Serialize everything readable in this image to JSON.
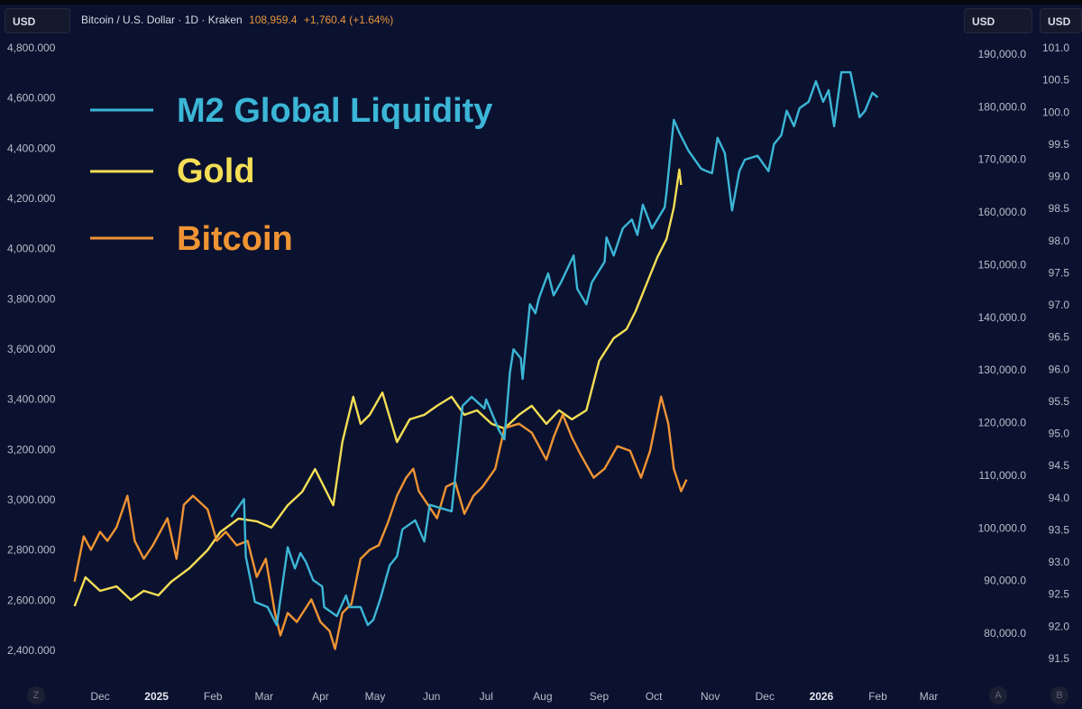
{
  "header": {
    "currency_left": "USD",
    "symbol_title": "Bitcoin / U.S. Dollar · 1D · Kraken",
    "price": "108,959.4",
    "change": "+1,760.4 (+1.64%)",
    "currency_right_a": "USD",
    "currency_right_b": "USD"
  },
  "bottom_buttons": {
    "z": "Z",
    "a": "A",
    "b": "B"
  },
  "colors": {
    "background": "#0b1230",
    "m2": "#3cb6d6",
    "gold": "#f4de55",
    "bitcoin": "#ef9433"
  },
  "chart_data": {
    "type": "line",
    "legend": [
      {
        "name": "M2 Global Liquidity",
        "color": "#3cb6d6"
      },
      {
        "name": "Gold",
        "color": "#f4de55"
      },
      {
        "name": "Bitcoin",
        "color": "#ef9433"
      }
    ],
    "legend_placement": "top-left",
    "grid": false,
    "x_ticks": [
      {
        "label": "Dec",
        "date": "2024-12-01",
        "bold": false
      },
      {
        "label": "2025",
        "date": "2025-01-01",
        "bold": true
      },
      {
        "label": "Feb",
        "date": "2025-02-01",
        "bold": false
      },
      {
        "label": "Mar",
        "date": "2025-03-01",
        "bold": false
      },
      {
        "label": "Apr",
        "date": "2025-04-01",
        "bold": false
      },
      {
        "label": "May",
        "date": "2025-05-01",
        "bold": false
      },
      {
        "label": "Jun",
        "date": "2025-06-01",
        "bold": false
      },
      {
        "label": "Jul",
        "date": "2025-07-01",
        "bold": false
      },
      {
        "label": "Aug",
        "date": "2025-08-01",
        "bold": false
      },
      {
        "label": "Sep",
        "date": "2025-09-01",
        "bold": false
      },
      {
        "label": "Oct",
        "date": "2025-10-01",
        "bold": false
      },
      {
        "label": "Nov",
        "date": "2025-11-01",
        "bold": false
      },
      {
        "label": "Dec",
        "date": "2025-12-01",
        "bold": false
      },
      {
        "label": "2026",
        "date": "2026-01-01",
        "bold": true
      },
      {
        "label": "Feb",
        "date": "2026-02-01",
        "bold": false
      },
      {
        "label": "Mar",
        "date": "2026-03-01",
        "bold": false
      }
    ],
    "axes": {
      "gold_left": {
        "ticks": [
          "4,800.000",
          "4,600.000",
          "4,400.000",
          "4,200.000",
          "4,000.000",
          "3,800.000",
          "3,600.000",
          "3,400.000",
          "3,200.000",
          "3,000.000",
          "2,800.000",
          "2,600.000",
          "2,400.000"
        ],
        "range": [
          2400,
          4800
        ]
      },
      "bitcoin_right": {
        "ticks": [
          "190,000.0",
          "180,000.0",
          "170,000.0",
          "160,000.0",
          "150,000.0",
          "140,000.0",
          "130,000.0",
          "120,000.0",
          "110,000.0",
          "100,000.0",
          "90,000.0",
          "80,000.0"
        ],
        "range": [
          80000,
          190000
        ]
      },
      "m2_right": {
        "ticks": [
          "101.0",
          "100.5",
          "100.0",
          "99.5",
          "99.0",
          "98.5",
          "98.0",
          "97.5",
          "97.0",
          "96.5",
          "96.0",
          "95.5",
          "95.0",
          "94.5",
          "94.0",
          "93.5",
          "93.0",
          "92.5",
          "92.0",
          "91.5"
        ],
        "range": [
          91.5,
          101.0
        ]
      }
    },
    "series": [
      {
        "name": "M2 Global Liquidity",
        "axis": "m2_right",
        "points": [
          [
            "2025-02-11",
            93.7
          ],
          [
            "2025-02-18",
            93.98
          ],
          [
            "2025-02-19",
            93.09
          ],
          [
            "2025-02-24",
            92.38
          ],
          [
            "2025-03-03",
            92.3
          ],
          [
            "2025-03-08",
            92.02
          ],
          [
            "2025-03-14",
            93.23
          ],
          [
            "2025-03-18",
            92.9
          ],
          [
            "2025-03-21",
            93.14
          ],
          [
            "2025-03-24",
            93.0
          ],
          [
            "2025-03-28",
            92.72
          ],
          [
            "2025-04-02",
            92.62
          ],
          [
            "2025-04-03",
            92.3
          ],
          [
            "2025-04-10",
            92.16
          ],
          [
            "2025-04-15",
            92.48
          ],
          [
            "2025-04-17",
            92.3
          ],
          [
            "2025-04-23",
            92.3
          ],
          [
            "2025-04-27",
            92.02
          ],
          [
            "2025-04-30",
            92.1
          ],
          [
            "2025-05-04",
            92.44
          ],
          [
            "2025-05-09",
            92.95
          ],
          [
            "2025-05-13",
            93.09
          ],
          [
            "2025-05-16",
            93.51
          ],
          [
            "2025-05-23",
            93.65
          ],
          [
            "2025-05-28",
            93.32
          ],
          [
            "2025-05-31",
            93.89
          ],
          [
            "2025-06-12",
            93.79
          ],
          [
            "2025-06-18",
            95.43
          ],
          [
            "2025-06-23",
            95.57
          ],
          [
            "2025-06-30",
            95.39
          ],
          [
            "2025-07-01",
            95.53
          ],
          [
            "2025-07-08",
            95.05
          ],
          [
            "2025-07-11",
            94.91
          ],
          [
            "2025-07-14",
            95.95
          ],
          [
            "2025-07-16",
            96.31
          ],
          [
            "2025-07-20",
            96.17
          ],
          [
            "2025-07-21",
            95.85
          ],
          [
            "2025-07-25",
            97.01
          ],
          [
            "2025-07-28",
            96.87
          ],
          [
            "2025-07-30",
            97.11
          ],
          [
            "2025-08-04",
            97.49
          ],
          [
            "2025-08-07",
            97.15
          ],
          [
            "2025-08-11",
            97.35
          ],
          [
            "2025-08-18",
            97.77
          ],
          [
            "2025-08-20",
            97.25
          ],
          [
            "2025-08-25",
            97.01
          ],
          [
            "2025-08-28",
            97.35
          ],
          [
            "2025-09-04",
            97.67
          ],
          [
            "2025-09-05",
            98.05
          ],
          [
            "2025-09-09",
            97.77
          ],
          [
            "2025-09-14",
            98.19
          ],
          [
            "2025-09-19",
            98.33
          ],
          [
            "2025-09-22",
            98.09
          ],
          [
            "2025-09-25",
            98.56
          ],
          [
            "2025-09-30",
            98.19
          ],
          [
            "2025-10-07",
            98.52
          ],
          [
            "2025-10-08",
            98.75
          ],
          [
            "2025-10-12",
            99.88
          ],
          [
            "2025-10-15",
            99.68
          ],
          [
            "2025-10-20",
            99.4
          ],
          [
            "2025-10-27",
            99.12
          ],
          [
            "2025-10-30",
            99.08
          ],
          [
            "2025-11-02",
            99.05
          ],
          [
            "2025-11-05",
            99.6
          ],
          [
            "2025-11-09",
            99.36
          ],
          [
            "2025-11-13",
            98.47
          ],
          [
            "2025-11-17",
            99.08
          ],
          [
            "2025-11-20",
            99.26
          ],
          [
            "2025-11-27",
            99.32
          ],
          [
            "2025-12-03",
            99.08
          ],
          [
            "2025-12-06",
            99.5
          ],
          [
            "2025-12-10",
            99.64
          ],
          [
            "2025-12-13",
            100.02
          ],
          [
            "2025-12-17",
            99.78
          ],
          [
            "2025-12-20",
            100.06
          ],
          [
            "2025-12-25",
            100.16
          ],
          [
            "2025-12-29",
            100.48
          ],
          [
            "2026-01-02",
            100.16
          ],
          [
            "2026-01-05",
            100.34
          ],
          [
            "2026-01-08",
            99.78
          ],
          [
            "2026-01-12",
            100.62
          ],
          [
            "2026-01-17",
            100.62
          ],
          [
            "2026-01-22",
            99.92
          ],
          [
            "2026-01-25",
            100.02
          ],
          [
            "2026-01-29",
            100.3
          ],
          [
            "2026-02-01",
            100.23
          ]
        ]
      },
      {
        "name": "Gold",
        "axis": "gold_left",
        "points": [
          [
            "2024-11-17",
            2576
          ],
          [
            "2024-11-23",
            2691
          ],
          [
            "2024-12-01",
            2637
          ],
          [
            "2024-12-10",
            2655
          ],
          [
            "2024-12-18",
            2601
          ],
          [
            "2024-12-25",
            2637
          ],
          [
            "2025-01-02",
            2619
          ],
          [
            "2025-01-09",
            2673
          ],
          [
            "2025-01-19",
            2727
          ],
          [
            "2025-01-29",
            2799
          ],
          [
            "2025-02-05",
            2871
          ],
          [
            "2025-02-15",
            2925
          ],
          [
            "2025-02-25",
            2914
          ],
          [
            "2025-03-05",
            2889
          ],
          [
            "2025-03-14",
            2978
          ],
          [
            "2025-03-22",
            3032
          ],
          [
            "2025-03-29",
            3122
          ],
          [
            "2025-04-03",
            3050
          ],
          [
            "2025-04-08",
            2978
          ],
          [
            "2025-04-13",
            3230
          ],
          [
            "2025-04-19",
            3410
          ],
          [
            "2025-04-23",
            3302
          ],
          [
            "2025-04-28",
            3338
          ],
          [
            "2025-05-05",
            3427
          ],
          [
            "2025-05-13",
            3230
          ],
          [
            "2025-05-20",
            3320
          ],
          [
            "2025-05-28",
            3338
          ],
          [
            "2025-06-04",
            3374
          ],
          [
            "2025-06-12",
            3410
          ],
          [
            "2025-06-19",
            3338
          ],
          [
            "2025-06-26",
            3356
          ],
          [
            "2025-07-04",
            3302
          ],
          [
            "2025-07-11",
            3284
          ],
          [
            "2025-07-19",
            3338
          ],
          [
            "2025-07-26",
            3374
          ],
          [
            "2025-08-03",
            3302
          ],
          [
            "2025-08-10",
            3356
          ],
          [
            "2025-08-17",
            3320
          ],
          [
            "2025-08-25",
            3356
          ],
          [
            "2025-09-01",
            3553
          ],
          [
            "2025-09-09",
            3643
          ],
          [
            "2025-09-16",
            3679
          ],
          [
            "2025-09-21",
            3751
          ],
          [
            "2025-09-26",
            3841
          ],
          [
            "2025-10-03",
            3966
          ],
          [
            "2025-10-08",
            4038
          ],
          [
            "2025-10-12",
            4164
          ],
          [
            "2025-10-15",
            4315
          ],
          [
            "2025-10-16",
            4254
          ]
        ]
      },
      {
        "name": "Bitcoin",
        "axis": "bitcoin_right",
        "points": [
          [
            "2024-11-17",
            89800
          ],
          [
            "2024-11-22",
            98410
          ],
          [
            "2024-11-26",
            95840
          ],
          [
            "2024-12-01",
            99260
          ],
          [
            "2024-12-05",
            97550
          ],
          [
            "2024-12-10",
            100120
          ],
          [
            "2024-12-16",
            106110
          ],
          [
            "2024-12-20",
            97550
          ],
          [
            "2024-12-25",
            94130
          ],
          [
            "2024-12-30",
            96700
          ],
          [
            "2025-01-07",
            101830
          ],
          [
            "2025-01-12",
            94130
          ],
          [
            "2025-01-16",
            104400
          ],
          [
            "2025-01-21",
            106110
          ],
          [
            "2025-01-29",
            103540
          ],
          [
            "2025-02-03",
            97550
          ],
          [
            "2025-02-08",
            99260
          ],
          [
            "2025-02-14",
            96700
          ],
          [
            "2025-02-20",
            97550
          ],
          [
            "2025-02-25",
            90700
          ],
          [
            "2025-03-02",
            94130
          ],
          [
            "2025-03-07",
            83860
          ],
          [
            "2025-03-10",
            79580
          ],
          [
            "2025-03-14",
            83860
          ],
          [
            "2025-03-19",
            82140
          ],
          [
            "2025-03-27",
            86420
          ],
          [
            "2025-04-01",
            82140
          ],
          [
            "2025-04-06",
            80430
          ],
          [
            "2025-04-09",
            77010
          ],
          [
            "2025-04-13",
            83860
          ],
          [
            "2025-04-18",
            85570
          ],
          [
            "2025-04-23",
            94130
          ],
          [
            "2025-04-28",
            95840
          ],
          [
            "2025-05-03",
            96700
          ],
          [
            "2025-05-08",
            101000
          ],
          [
            "2025-05-13",
            106110
          ],
          [
            "2025-05-18",
            109540
          ],
          [
            "2025-05-22",
            111250
          ],
          [
            "2025-05-25",
            106970
          ],
          [
            "2025-05-30",
            104400
          ],
          [
            "2025-06-04",
            101830
          ],
          [
            "2025-06-09",
            107820
          ],
          [
            "2025-06-14",
            108680
          ],
          [
            "2025-06-19",
            102690
          ],
          [
            "2025-06-24",
            106110
          ],
          [
            "2025-06-29",
            107820
          ],
          [
            "2025-07-06",
            111250
          ],
          [
            "2025-07-11",
            118950
          ],
          [
            "2025-07-19",
            119810
          ],
          [
            "2025-07-26",
            118100
          ],
          [
            "2025-08-03",
            112960
          ],
          [
            "2025-08-07",
            117240
          ],
          [
            "2025-08-12",
            121520
          ],
          [
            "2025-08-17",
            117240
          ],
          [
            "2025-08-22",
            113820
          ],
          [
            "2025-08-29",
            109540
          ],
          [
            "2025-09-04",
            111250
          ],
          [
            "2025-09-11",
            115530
          ],
          [
            "2025-09-18",
            114670
          ],
          [
            "2025-09-24",
            109540
          ],
          [
            "2025-09-29",
            114670
          ],
          [
            "2025-10-05",
            124940
          ],
          [
            "2025-10-09",
            119810
          ],
          [
            "2025-10-12",
            111250
          ],
          [
            "2025-10-16",
            106970
          ],
          [
            "2025-10-19",
            109190
          ]
        ]
      }
    ]
  }
}
